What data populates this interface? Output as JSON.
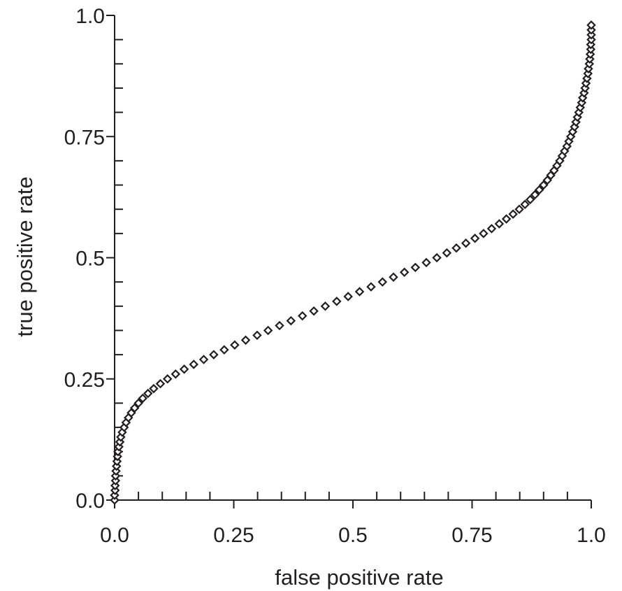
{
  "chart_data": {
    "type": "scatter",
    "title": "",
    "xlabel": "false positive rate",
    "ylabel": "true positive rate",
    "xlim": [
      0,
      1
    ],
    "ylim": [
      0,
      1
    ],
    "x_ticks": [
      "0.0",
      "0.25",
      "0.5",
      "0.75",
      "1.0"
    ],
    "y_ticks": [
      "0.0",
      "0.25",
      "0.5",
      "0.75",
      "1.0"
    ],
    "grid": false,
    "marker": "diamond",
    "colors": {
      "ink": "#231f20",
      "marker_fill": "#ffffff"
    },
    "series": [
      {
        "points": [
          [
            0.0,
            0.0
          ],
          [
            0.0,
            0.01
          ],
          [
            0.001,
            0.02
          ],
          [
            0.001,
            0.03
          ],
          [
            0.002,
            0.04
          ],
          [
            0.002,
            0.05
          ],
          [
            0.003,
            0.06
          ],
          [
            0.004,
            0.07
          ],
          [
            0.005,
            0.08
          ],
          [
            0.006,
            0.09
          ],
          [
            0.007,
            0.1
          ],
          [
            0.009,
            0.11
          ],
          [
            0.011,
            0.12
          ],
          [
            0.013,
            0.13
          ],
          [
            0.016,
            0.14
          ],
          [
            0.02,
            0.15
          ],
          [
            0.024,
            0.16
          ],
          [
            0.029,
            0.17
          ],
          [
            0.035,
            0.18
          ],
          [
            0.042,
            0.19
          ],
          [
            0.05,
            0.2
          ],
          [
            0.059,
            0.21
          ],
          [
            0.07,
            0.22
          ],
          [
            0.082,
            0.23
          ],
          [
            0.096,
            0.24
          ],
          [
            0.111,
            0.25
          ],
          [
            0.128,
            0.26
          ],
          [
            0.146,
            0.27
          ],
          [
            0.166,
            0.28
          ],
          [
            0.187,
            0.29
          ],
          [
            0.208,
            0.3
          ],
          [
            0.23,
            0.31
          ],
          [
            0.252,
            0.32
          ],
          [
            0.275,
            0.33
          ],
          [
            0.299,
            0.34
          ],
          [
            0.322,
            0.35
          ],
          [
            0.346,
            0.36
          ],
          [
            0.37,
            0.37
          ],
          [
            0.394,
            0.38
          ],
          [
            0.418,
            0.39
          ],
          [
            0.442,
            0.4
          ],
          [
            0.466,
            0.41
          ],
          [
            0.49,
            0.42
          ],
          [
            0.514,
            0.43
          ],
          [
            0.538,
            0.44
          ],
          [
            0.562,
            0.45
          ],
          [
            0.585,
            0.46
          ],
          [
            0.608,
            0.47
          ],
          [
            0.631,
            0.48
          ],
          [
            0.654,
            0.49
          ],
          [
            0.676,
            0.5
          ],
          [
            0.697,
            0.51
          ],
          [
            0.717,
            0.52
          ],
          [
            0.737,
            0.53
          ],
          [
            0.756,
            0.54
          ],
          [
            0.774,
            0.55
          ],
          [
            0.791,
            0.56
          ],
          [
            0.807,
            0.57
          ],
          [
            0.822,
            0.58
          ],
          [
            0.836,
            0.59
          ],
          [
            0.849,
            0.6
          ],
          [
            0.861,
            0.61
          ],
          [
            0.872,
            0.62
          ],
          [
            0.882,
            0.63
          ],
          [
            0.891,
            0.64
          ],
          [
            0.9,
            0.65
          ],
          [
            0.908,
            0.66
          ],
          [
            0.915,
            0.67
          ],
          [
            0.922,
            0.68
          ],
          [
            0.928,
            0.69
          ],
          [
            0.934,
            0.7
          ],
          [
            0.939,
            0.71
          ],
          [
            0.944,
            0.72
          ],
          [
            0.949,
            0.73
          ],
          [
            0.953,
            0.74
          ],
          [
            0.957,
            0.75
          ],
          [
            0.961,
            0.76
          ],
          [
            0.965,
            0.77
          ],
          [
            0.968,
            0.78
          ],
          [
            0.971,
            0.79
          ],
          [
            0.974,
            0.8
          ],
          [
            0.977,
            0.81
          ],
          [
            0.98,
            0.82
          ],
          [
            0.982,
            0.83
          ],
          [
            0.985,
            0.84
          ],
          [
            0.987,
            0.85
          ],
          [
            0.989,
            0.86
          ],
          [
            0.991,
            0.87
          ],
          [
            0.993,
            0.88
          ],
          [
            0.994,
            0.89
          ],
          [
            0.996,
            0.9
          ],
          [
            0.997,
            0.91
          ],
          [
            0.998,
            0.92
          ],
          [
            0.999,
            0.93
          ],
          [
            0.999,
            0.94
          ],
          [
            1.0,
            0.95
          ],
          [
            1.0,
            0.96
          ],
          [
            1.0,
            0.97
          ],
          [
            1.0,
            0.98
          ]
        ]
      }
    ]
  }
}
